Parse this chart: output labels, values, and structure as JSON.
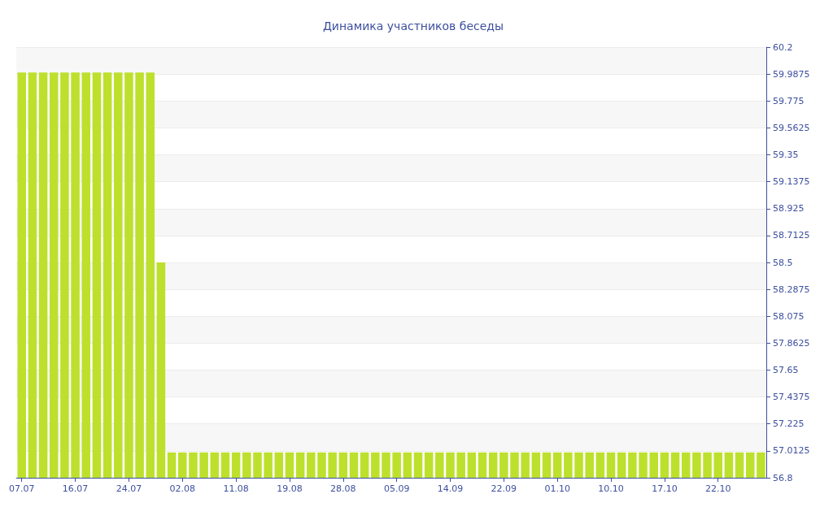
{
  "chart_data": {
    "type": "bar",
    "title": "Динамика участников беседы",
    "categories": [
      "07.07",
      null,
      null,
      null,
      null,
      "16.07",
      null,
      null,
      null,
      null,
      "24.07",
      null,
      null,
      null,
      null,
      "02.08",
      null,
      null,
      null,
      null,
      "11.08",
      null,
      null,
      null,
      null,
      "19.08",
      null,
      null,
      null,
      null,
      "28.08",
      null,
      null,
      null,
      null,
      "05.09",
      null,
      null,
      null,
      null,
      "14.09",
      null,
      null,
      null,
      null,
      "22.09",
      null,
      null,
      null,
      null,
      "01.10",
      null,
      null,
      null,
      null,
      "10.10",
      null,
      null,
      null,
      null,
      "17.10",
      null,
      null,
      null,
      null,
      "22.10",
      null,
      null,
      null,
      null
    ],
    "values": [
      60,
      60,
      60,
      60,
      60,
      60,
      60,
      60,
      60,
      60,
      60,
      60,
      60,
      58.5,
      57,
      57,
      57,
      57,
      57,
      57,
      57,
      57,
      57,
      57,
      57,
      57,
      57,
      57,
      57,
      57,
      57,
      57,
      57,
      57,
      57,
      57,
      57,
      57,
      57,
      57,
      57,
      57,
      57,
      57,
      57,
      57,
      57,
      57,
      57,
      57,
      57,
      57,
      57,
      57,
      57,
      57,
      57,
      57,
      57,
      57,
      57,
      57,
      57,
      57,
      57,
      57,
      57,
      57,
      57,
      57
    ],
    "color": "#bde02d",
    "ylim": [
      56.8,
      60.2
    ],
    "yticks": [
      56.8,
      57.0125,
      57.225,
      57.4375,
      57.65,
      57.8625,
      58.075,
      58.2875,
      58.5,
      58.7125,
      58.925,
      59.1375,
      59.35,
      59.5625,
      59.775,
      59.9875,
      60.2
    ],
    "grid": "y"
  }
}
